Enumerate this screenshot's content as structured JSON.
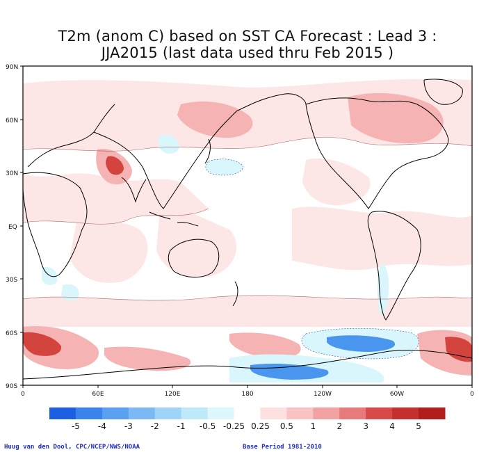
{
  "title": {
    "line1": "T2m (anom C) based on SST CA Forecast : Lead 3 :",
    "line2": "JJA2015 (last data used thru Feb 2015 )"
  },
  "map": {
    "lat_labels": [
      "90N",
      "60N",
      "30N",
      "EQ",
      "30S",
      "60S",
      "90S"
    ],
    "lon_labels": [
      "0",
      "60E",
      "120E",
      "180",
      "120W",
      "60W",
      "0"
    ],
    "features": [
      "continents-outline",
      "anomaly-fill",
      "anomaly-contours"
    ],
    "palette": {
      "neg_strong": "#1e6be6",
      "neg_mid": "#4a96ef",
      "neg_light": "#a6dcf8",
      "neg_pale": "#d8f6fb",
      "pos_pale": "#fde6e6",
      "pos_light": "#f6b3b3",
      "pos_mid": "#ec8888",
      "pos_strong": "#d4443f",
      "pos_max": "#b8201f",
      "land_line": "#000000"
    }
  },
  "colorbar": {
    "labels": [
      "-5",
      "-4",
      "-3",
      "-2",
      "-1",
      "-0.5",
      "-0.25",
      "0.25",
      "0.5",
      "1",
      "2",
      "3",
      "4",
      "5"
    ],
    "colors": [
      "#1c5fe0",
      "#3a83ec",
      "#5a9ff0",
      "#7cb8f4",
      "#a0d4f7",
      "#bfe9f9",
      "#ddf8fb",
      "#ffffff",
      "#fde0e0",
      "#f7c3c3",
      "#f1a3a3",
      "#e77a7a",
      "#d64b4a",
      "#c4302d",
      "#b01e1e"
    ]
  },
  "footer": {
    "credit": "Huug van den Dool, CPC/NCEP/NWS/NOAA",
    "base_period": "Base Period 1981-2010"
  }
}
